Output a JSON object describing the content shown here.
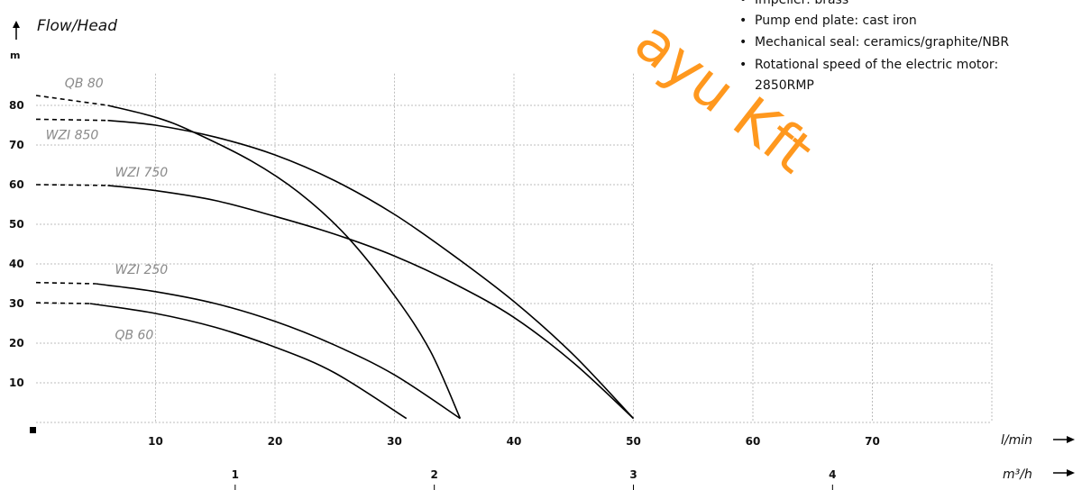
{
  "chart_data": {
    "type": "line",
    "title": "",
    "ylabel": "Flow/Head",
    "y_unit": "m",
    "x_unit": "l/min",
    "x2_unit": "m³/h",
    "xlim": [
      0,
      80
    ],
    "ylim": [
      0,
      90
    ],
    "x_ticks": [
      10,
      20,
      30,
      40,
      50,
      60,
      70
    ],
    "y_ticks": [
      10,
      20,
      30,
      40,
      50,
      60,
      70,
      80
    ],
    "x2_ticks": [
      1,
      2,
      3,
      4
    ],
    "grid": true,
    "series": [
      {
        "name": "QB 80",
        "dashed_until": 6,
        "points": [
          [
            0,
            82.5
          ],
          [
            6,
            80
          ],
          [
            10,
            77
          ],
          [
            13,
            73.5
          ],
          [
            18,
            66
          ],
          [
            22,
            58
          ],
          [
            26,
            47
          ],
          [
            30,
            32
          ],
          [
            33,
            18
          ],
          [
            35.5,
            1
          ]
        ]
      },
      {
        "name": "WZI 850",
        "dashed_until": 6,
        "points": [
          [
            0,
            76.5
          ],
          [
            6,
            76.2
          ],
          [
            10,
            75
          ],
          [
            15,
            72
          ],
          [
            20,
            67.5
          ],
          [
            25,
            61
          ],
          [
            30,
            52.5
          ],
          [
            35,
            42
          ],
          [
            40,
            30.5
          ],
          [
            45,
            17
          ],
          [
            50,
            1
          ]
        ]
      },
      {
        "name": "WZI 750",
        "dashed_until": 6,
        "points": [
          [
            0,
            60
          ],
          [
            6,
            59.8
          ],
          [
            10,
            58.5
          ],
          [
            15,
            56
          ],
          [
            20,
            52
          ],
          [
            25,
            47.5
          ],
          [
            30,
            42
          ],
          [
            35,
            35
          ],
          [
            40,
            26.5
          ],
          [
            45,
            15
          ],
          [
            50,
            1
          ]
        ]
      },
      {
        "name": "WZI 250",
        "dashed_until": 5,
        "points": [
          [
            0,
            35.3
          ],
          [
            5,
            35
          ],
          [
            10,
            33
          ],
          [
            15,
            30
          ],
          [
            20,
            25.5
          ],
          [
            25,
            19.5
          ],
          [
            30,
            12
          ],
          [
            35.5,
            1
          ]
        ]
      },
      {
        "name": "QB 60",
        "dashed_until": 4.5,
        "points": [
          [
            0,
            30.2
          ],
          [
            4.5,
            30
          ],
          [
            10,
            27.5
          ],
          [
            15,
            24
          ],
          [
            20,
            19
          ],
          [
            25,
            12.5
          ],
          [
            31,
            1
          ]
        ]
      }
    ],
    "annotations": [
      "Impeller: brass",
      "Pump end plate: cast iron",
      "Mechanical seal: ceramics/graphite/NBR",
      "Rotational speed of the electric motor:",
      "2850RMP"
    ],
    "watermark": "ayu Kft",
    "colors": {
      "curves": "#000000",
      "grid": "#bdbdbd",
      "curve_labels": "#8a8a8a",
      "watermark": "#ff8a00"
    }
  }
}
